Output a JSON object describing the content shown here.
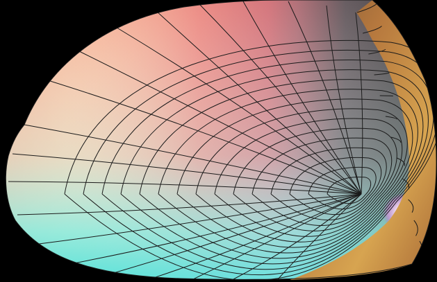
{
  "scene": {
    "background": "#000000",
    "object": "parametric-surface-render",
    "style": "shaded surface with dark wireframe grid lines",
    "grid_line_color": "#1a1a1a",
    "palette": {
      "peach": "#f6a58d",
      "salmon": "#e46a62",
      "cream": "#fdf7d7",
      "white": "#ffffff",
      "mint": "#8ff0df",
      "aqua": "#65e3dc",
      "gray": "#4a4a4a",
      "dark_gray": "#3a3a3a",
      "magenta": "#c36ccb",
      "orange": "#c78a45",
      "gold": "#d7a450",
      "brown": "#7e5736"
    }
  }
}
